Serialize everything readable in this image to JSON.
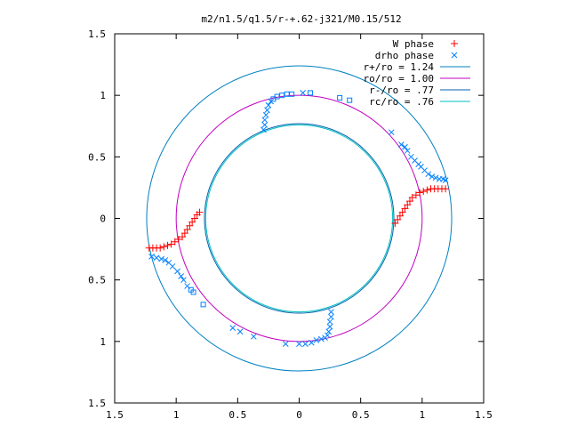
{
  "chart_data": {
    "type": "scatter",
    "title": "m2/n1.5/q1.5/r-+.62-j321/M0.15/512",
    "xlabel": "",
    "ylabel": "",
    "xlim": [
      -1.5,
      1.5
    ],
    "ylim": [
      -1.5,
      1.5
    ],
    "x_ticks": [
      -1.5,
      -1,
      -0.5,
      0,
      0.5,
      1,
      1.5
    ],
    "x_tick_labels": [
      "1.5",
      "1",
      "0.5",
      "0",
      "0.5",
      "1",
      "1.5"
    ],
    "y_ticks": [
      1.5,
      1,
      0.5,
      0,
      -0.5,
      -1,
      -1.5
    ],
    "y_tick_labels": [
      "1.5",
      "1",
      "0.5",
      "0",
      "0.5",
      "1",
      "1.5"
    ],
    "grid": false,
    "legend_position": "top-right",
    "series": [
      {
        "name": "W phase",
        "marker": "plus",
        "color": "#ff0000",
        "points": [
          [
            -1.22,
            -0.24
          ],
          [
            -1.19,
            -0.24
          ],
          [
            -1.16,
            -0.24
          ],
          [
            -1.13,
            -0.24
          ],
          [
            -1.1,
            -0.23
          ],
          [
            -1.07,
            -0.22
          ],
          [
            -1.04,
            -0.21
          ],
          [
            -1.01,
            -0.19
          ],
          [
            -0.98,
            -0.17
          ],
          [
            -0.95,
            -0.15
          ],
          [
            -0.93,
            -0.12
          ],
          [
            -0.91,
            -0.09
          ],
          [
            -0.89,
            -0.06
          ],
          [
            -0.87,
            -0.03
          ],
          [
            -0.85,
            0.0
          ],
          [
            -0.83,
            0.03
          ],
          [
            -0.81,
            0.05
          ],
          [
            0.78,
            -0.04
          ],
          [
            0.8,
            -0.01
          ],
          [
            0.82,
            0.02
          ],
          [
            0.84,
            0.05
          ],
          [
            0.86,
            0.08
          ],
          [
            0.88,
            0.11
          ],
          [
            0.9,
            0.14
          ],
          [
            0.92,
            0.17
          ],
          [
            0.95,
            0.19
          ],
          [
            0.98,
            0.21
          ],
          [
            1.01,
            0.22
          ],
          [
            1.04,
            0.23
          ],
          [
            1.07,
            0.24
          ],
          [
            1.1,
            0.24
          ],
          [
            1.13,
            0.24
          ],
          [
            1.16,
            0.24
          ],
          [
            1.19,
            0.24
          ]
        ]
      },
      {
        "name": "drho phase",
        "marker": "cross",
        "color": "#0080ff",
        "points": [
          [
            -1.2,
            -0.31
          ],
          [
            -1.16,
            -0.32
          ],
          [
            -1.12,
            -0.33
          ],
          [
            -1.09,
            -0.34
          ],
          [
            -1.06,
            -0.36
          ],
          [
            -1.03,
            -0.39
          ],
          [
            -0.99,
            -0.43
          ],
          [
            -0.96,
            -0.47
          ],
          [
            -0.94,
            -0.5
          ],
          [
            -0.91,
            -0.55
          ],
          [
            -0.88,
            -0.58
          ],
          [
            -0.86,
            -0.6
          ],
          [
            -0.78,
            -0.7
          ],
          [
            -0.54,
            -0.89
          ],
          [
            -0.48,
            -0.92
          ],
          [
            -0.37,
            -0.96
          ],
          [
            -0.11,
            -1.02
          ],
          [
            0.0,
            -1.02
          ],
          [
            0.05,
            -1.02
          ],
          [
            0.1,
            -1.01
          ],
          [
            0.14,
            -0.99
          ],
          [
            0.18,
            -0.98
          ],
          [
            0.21,
            -0.97
          ],
          [
            0.23,
            -0.95
          ],
          [
            0.24,
            -0.92
          ],
          [
            0.25,
            -0.88
          ],
          [
            0.25,
            -0.84
          ],
          [
            0.26,
            -0.8
          ],
          [
            0.26,
            -0.76
          ],
          [
            -0.29,
            0.72
          ],
          [
            -0.28,
            0.76
          ],
          [
            -0.28,
            0.8
          ],
          [
            -0.27,
            0.84
          ],
          [
            -0.26,
            0.88
          ],
          [
            -0.25,
            0.92
          ],
          [
            -0.23,
            0.95
          ],
          [
            -0.21,
            0.97
          ],
          [
            -0.18,
            0.99
          ],
          [
            -0.14,
            1.0
          ],
          [
            -0.1,
            1.01
          ],
          [
            -0.06,
            1.01
          ],
          [
            0.03,
            1.02
          ],
          [
            0.09,
            1.02
          ],
          [
            0.33,
            0.98
          ],
          [
            0.41,
            0.96
          ],
          [
            0.75,
            0.7
          ],
          [
            0.83,
            0.6
          ],
          [
            0.86,
            0.58
          ],
          [
            0.88,
            0.55
          ],
          [
            0.91,
            0.5
          ],
          [
            0.94,
            0.47
          ],
          [
            0.97,
            0.44
          ],
          [
            0.99,
            0.42
          ],
          [
            1.02,
            0.39
          ],
          [
            1.05,
            0.36
          ],
          [
            1.08,
            0.34
          ],
          [
            1.11,
            0.33
          ],
          [
            1.14,
            0.32
          ],
          [
            1.17,
            0.32
          ],
          [
            1.19,
            0.31
          ]
        ]
      },
      {
        "name": "r+/ro = 1.24",
        "type": "circle",
        "radius": 1.24,
        "color": "#0080c0"
      },
      {
        "name": "ro/ro = 1.00",
        "type": "circle",
        "radius": 1.0,
        "color": "#c000c0"
      },
      {
        "name": "r-/ro = .77",
        "type": "circle",
        "radius": 0.77,
        "color": "#0060b0"
      },
      {
        "name": "rc/ro = .76",
        "type": "circle",
        "radius": 0.76,
        "color": "#00c0c0"
      }
    ]
  }
}
